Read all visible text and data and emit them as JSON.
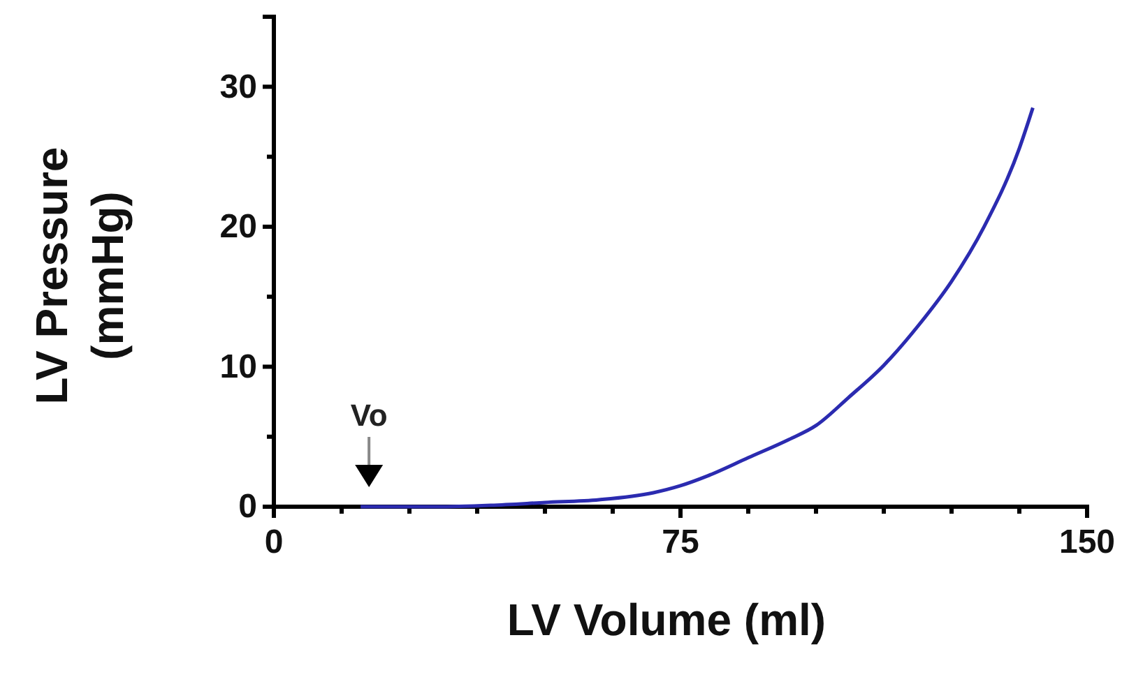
{
  "chart_data": {
    "type": "line",
    "xlabel": "LV Volume (ml)",
    "ylabel": "LV Pressure\n(mmHg)",
    "xlim": [
      0,
      150
    ],
    "ylim": [
      0,
      35
    ],
    "xticks": [
      0,
      {
        "value": 12.5,
        "label": null
      },
      {
        "value": 25,
        "label": null
      },
      {
        "value": 37.5,
        "label": null
      },
      {
        "value": 50,
        "label": null
      },
      {
        "value": 62.5,
        "label": null
      },
      75,
      {
        "value": 87.5,
        "label": null
      },
      {
        "value": 100,
        "label": null
      },
      {
        "value": 112.5,
        "label": null
      },
      {
        "value": 125,
        "label": null
      },
      {
        "value": 137.5,
        "label": null
      },
      150
    ],
    "yticks": [
      0,
      {
        "value": 5,
        "label": null
      },
      10,
      {
        "value": 15,
        "label": null
      },
      20,
      {
        "value": 25,
        "label": null
      },
      30
    ],
    "x": [
      16,
      30,
      40,
      50,
      60,
      70,
      75,
      80,
      87.5,
      95,
      100,
      106,
      112.5,
      119,
      125,
      131,
      137.5,
      140
    ],
    "series": [
      {
        "color": "#2b2bb0",
        "values": [
          0,
          0,
          0.1,
          0.3,
          0.5,
          1,
          1.5,
          2.2,
          3.5,
          4.8,
          5.8,
          7.8,
          10.1,
          13,
          16.1,
          20,
          25.6,
          28.5
        ]
      }
    ],
    "annotations": [
      {
        "text": "Vo",
        "x": 16,
        "y": 0
      }
    ],
    "marker": "none",
    "line_style": "solid"
  }
}
